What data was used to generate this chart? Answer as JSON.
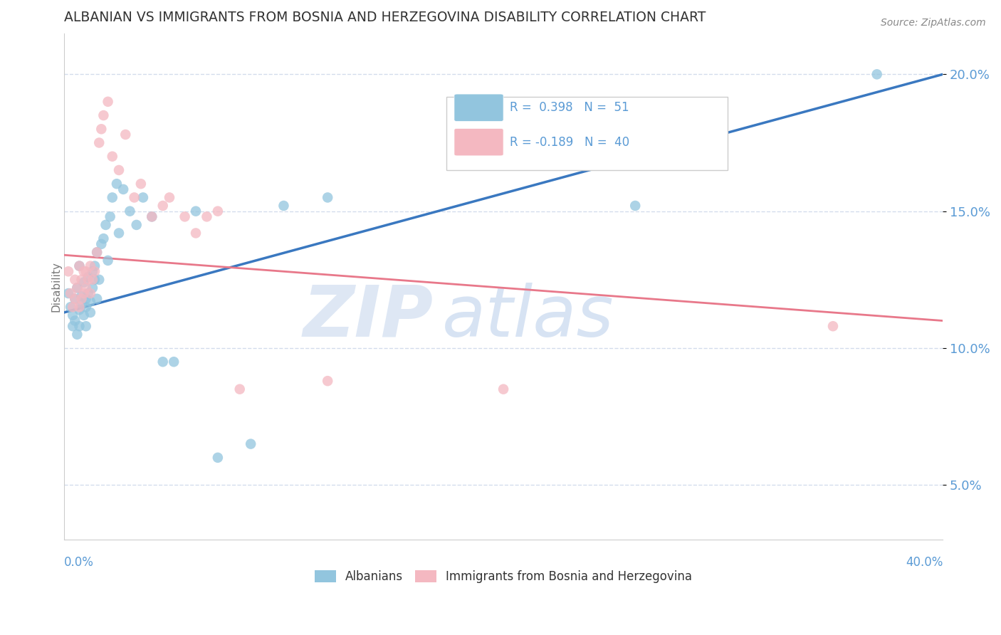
{
  "title": "ALBANIAN VS IMMIGRANTS FROM BOSNIA AND HERZEGOVINA DISABILITY CORRELATION CHART",
  "source": "Source: ZipAtlas.com",
  "ylabel": "Disability",
  "xlim": [
    0.0,
    0.4
  ],
  "ylim": [
    0.03,
    0.215
  ],
  "yticks": [
    0.05,
    0.1,
    0.15,
    0.2
  ],
  "ytick_labels": [
    "5.0%",
    "10.0%",
    "15.0%",
    "20.0%"
  ],
  "color_albanian": "#92c5de",
  "color_bosnian": "#f4b8c1",
  "color_line_albanian": "#3a78c0",
  "color_line_bosnian": "#e8788a",
  "color_axis_text": "#5b9bd5",
  "color_grid": "#c8d4e8",
  "albanian_x": [
    0.002,
    0.003,
    0.004,
    0.004,
    0.005,
    0.005,
    0.006,
    0.006,
    0.007,
    0.007,
    0.007,
    0.008,
    0.008,
    0.009,
    0.009,
    0.01,
    0.01,
    0.01,
    0.011,
    0.011,
    0.012,
    0.012,
    0.013,
    0.013,
    0.014,
    0.014,
    0.015,
    0.015,
    0.016,
    0.017,
    0.018,
    0.019,
    0.02,
    0.021,
    0.022,
    0.024,
    0.025,
    0.027,
    0.03,
    0.033,
    0.036,
    0.04,
    0.045,
    0.05,
    0.06,
    0.07,
    0.085,
    0.1,
    0.12,
    0.26,
    0.37
  ],
  "albanian_y": [
    0.12,
    0.115,
    0.108,
    0.112,
    0.118,
    0.11,
    0.105,
    0.122,
    0.13,
    0.114,
    0.108,
    0.116,
    0.119,
    0.112,
    0.124,
    0.108,
    0.115,
    0.118,
    0.12,
    0.126,
    0.113,
    0.117,
    0.122,
    0.128,
    0.125,
    0.13,
    0.135,
    0.118,
    0.125,
    0.138,
    0.14,
    0.145,
    0.132,
    0.148,
    0.155,
    0.16,
    0.142,
    0.158,
    0.15,
    0.145,
    0.155,
    0.148,
    0.095,
    0.095,
    0.15,
    0.06,
    0.065,
    0.152,
    0.155,
    0.152,
    0.2
  ],
  "bosnian_x": [
    0.002,
    0.003,
    0.004,
    0.005,
    0.005,
    0.006,
    0.007,
    0.007,
    0.008,
    0.008,
    0.009,
    0.009,
    0.01,
    0.01,
    0.011,
    0.012,
    0.012,
    0.013,
    0.014,
    0.015,
    0.016,
    0.017,
    0.018,
    0.02,
    0.022,
    0.025,
    0.028,
    0.032,
    0.035,
    0.04,
    0.045,
    0.048,
    0.055,
    0.06,
    0.065,
    0.07,
    0.08,
    0.12,
    0.2,
    0.35
  ],
  "bosnian_y": [
    0.128,
    0.12,
    0.115,
    0.125,
    0.118,
    0.122,
    0.13,
    0.115,
    0.125,
    0.118,
    0.128,
    0.12,
    0.122,
    0.128,
    0.125,
    0.13,
    0.12,
    0.125,
    0.128,
    0.135,
    0.175,
    0.18,
    0.185,
    0.19,
    0.17,
    0.165,
    0.178,
    0.155,
    0.16,
    0.148,
    0.152,
    0.155,
    0.148,
    0.142,
    0.148,
    0.15,
    0.085,
    0.088,
    0.085,
    0.108
  ],
  "alb_line_x0": 0.0,
  "alb_line_y0": 0.113,
  "alb_line_x1": 0.4,
  "alb_line_y1": 0.2,
  "bos_line_x0": 0.0,
  "bos_line_y0": 0.134,
  "bos_line_x1": 0.4,
  "bos_line_y1": 0.11,
  "watermark_zip": "ZIP",
  "watermark_atlas": "atlas",
  "legend_items": [
    {
      "label": "R =  0.398   N =  51",
      "color": "#92c5de"
    },
    {
      "label": "R = -0.189   N =  40",
      "color": "#f4b8c1"
    }
  ]
}
